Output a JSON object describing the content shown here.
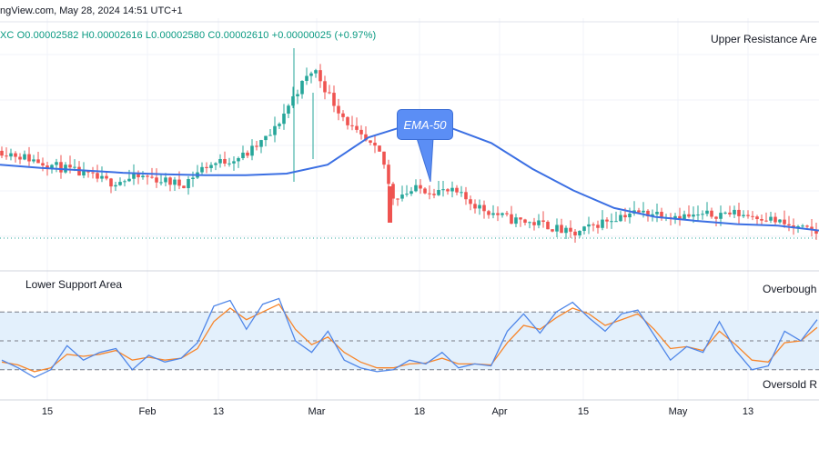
{
  "header": {
    "source_line": "ngView.com, May 28, 2024 14:51 UTC+1",
    "ohlc_line": "XC  O0.00002582  H0.00002616  L0.00002580  C0.00002610  +0.00000025 (+0.97%)"
  },
  "annotations": {
    "upper_resistance": "Upper Resistance Are",
    "lower_support": "Lower Support Area",
    "overbought": "Overbough",
    "oversold": "Oversold R",
    "ema_badge": "EMA-50"
  },
  "colors": {
    "up": "#26a69a",
    "down": "#ef5350",
    "ema": "#3b6fe3",
    "stoch_k": "#4f86e8",
    "stoch_d": "#f7852a",
    "band": "#e3f0fc"
  },
  "chart_data": [
    {
      "type": "candlestick",
      "x_tick_labels": [
        "15",
        "Feb",
        "13",
        "Mar",
        "18",
        "Apr",
        "15",
        "May",
        "13"
      ],
      "series": [
        {
          "name": "EMA-50",
          "values": [
            2.6,
            2.596,
            2.593,
            2.59,
            2.588,
            2.587,
            2.587,
            2.589,
            2.6,
            2.634,
            2.65,
            2.646,
            2.627,
            2.595,
            2.568,
            2.546,
            2.535,
            2.53,
            2.526,
            2.524,
            2.518
          ]
        }
      ]
    },
    {
      "type": "line",
      "series": [
        {
          "name": "%K",
          "values": [
            30,
            22,
            12,
            20,
            45,
            30,
            38,
            42,
            20,
            35,
            28,
            32,
            48,
            86,
            92,
            62,
            88,
            94,
            50,
            38,
            60,
            30,
            22,
            18,
            20,
            30,
            26,
            38,
            22,
            26,
            24,
            60,
            78,
            58,
            80,
            90,
            74,
            60,
            78,
            82,
            56,
            30,
            44,
            38,
            70,
            40,
            20,
            24,
            60,
            50,
            72
          ]
        },
        {
          "name": "%D",
          "values": [
            28,
            25,
            18,
            22,
            36,
            34,
            36,
            40,
            30,
            33,
            30,
            32,
            42,
            70,
            84,
            72,
            80,
            88,
            62,
            46,
            54,
            38,
            28,
            22,
            22,
            26,
            27,
            32,
            26,
            26,
            25,
            48,
            66,
            62,
            74,
            84,
            78,
            66,
            72,
            78,
            62,
            42,
            44,
            40,
            60,
            46,
            30,
            28,
            48,
            50,
            64
          ]
        }
      ],
      "ylim": [
        0,
        100
      ],
      "levels": [
        80,
        50,
        20
      ]
    }
  ]
}
